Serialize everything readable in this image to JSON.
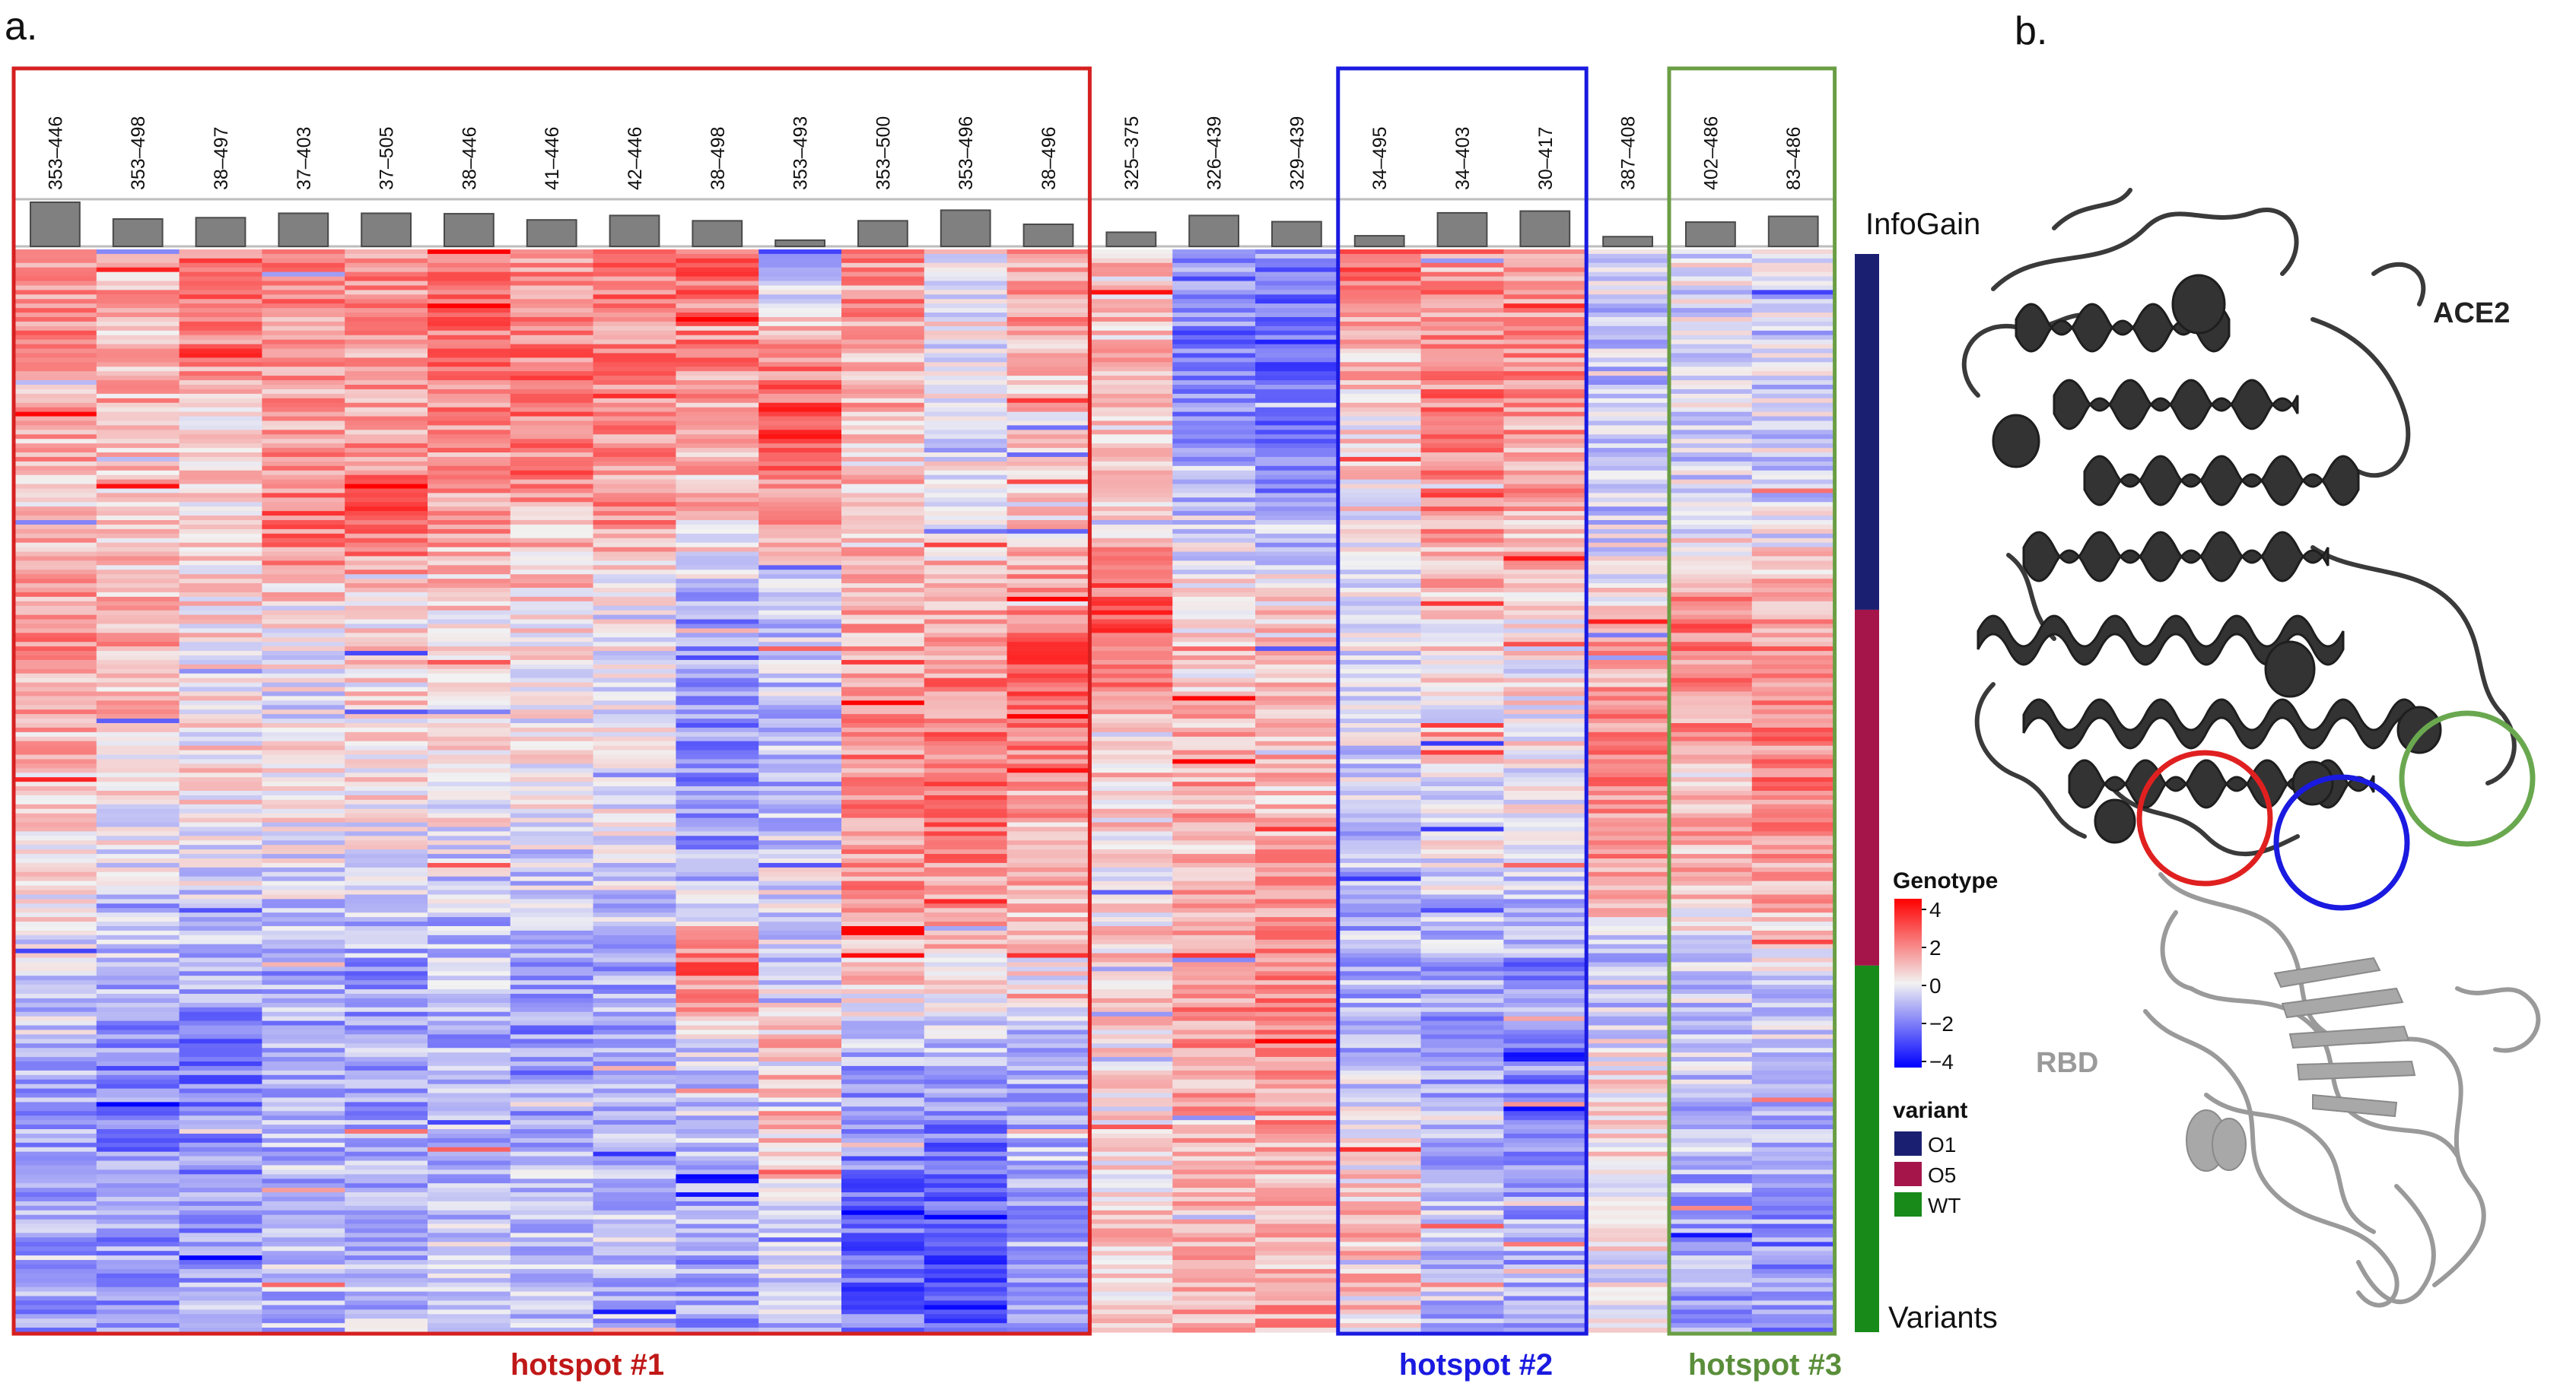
{
  "panels": {
    "a": "a.",
    "b": "b."
  },
  "chart_data": {
    "type": "heatmap",
    "title": "",
    "columns": [
      "353–446",
      "353–498",
      "38–497",
      "37–403",
      "37–505",
      "38–446",
      "41–446",
      "42–446",
      "38–498",
      "353–493",
      "353–500",
      "353–496",
      "38–496",
      "325–375",
      "326–439",
      "329–439",
      "34–495",
      "34–403",
      "30–417",
      "387–408",
      "402–486",
      "83–486"
    ],
    "infogain": {
      "label": "InfoGain",
      "values": [
        1.0,
        0.62,
        0.65,
        0.75,
        0.75,
        0.74,
        0.6,
        0.7,
        0.58,
        0.14,
        0.58,
        0.82,
        0.5,
        0.32,
        0.7,
        0.56,
        0.24,
        0.76,
        0.8,
        0.22,
        0.55,
        0.68
      ]
    },
    "color_scale": {
      "title": "Genotype",
      "min": -4,
      "max": 4,
      "ticks": [
        "4",
        "2",
        "0",
        "−2",
        "−4"
      ],
      "low": "#0000ff",
      "mid": "#f2f2f2",
      "high": "#ff0000"
    },
    "row_groups": {
      "label": "Variants",
      "legend_title": "variant",
      "groups": [
        {
          "name": "O1",
          "color": "#1b1f72",
          "fraction": 0.33
        },
        {
          "name": "O5",
          "color": "#a5154a",
          "fraction": 0.33
        },
        {
          "name": "WT",
          "color": "#178a1a",
          "fraction": 0.34
        }
      ]
    },
    "column_profiles": [
      [
        1.5,
        1.6,
        1.2,
        0.8,
        1.6,
        1.2,
        0.6,
        0.4,
        -0.5,
        -1.0,
        -1.3,
        -1.4,
        -1.3
      ],
      [
        1.2,
        1.0,
        1.0,
        0.4,
        1.2,
        1.0,
        0.3,
        -0.2,
        -0.8,
        -1.8,
        -1.7,
        -1.5,
        -1.4
      ],
      [
        2.2,
        1.8,
        0.6,
        0.2,
        0.4,
        0.2,
        0.4,
        -0.3,
        -1.2,
        -2.2,
        -1.6,
        -1.4,
        -1.3
      ],
      [
        2.0,
        1.6,
        1.4,
        2.2,
        0.2,
        -0.2,
        0.4,
        -0.4,
        -1.2,
        -1.2,
        -1.0,
        -0.8,
        -1.0
      ],
      [
        1.8,
        1.6,
        1.2,
        2.4,
        0.3,
        0.4,
        0.3,
        -0.4,
        -1.5,
        -1.2,
        -1.2,
        -1.0,
        -0.9
      ],
      [
        2.0,
        2.0,
        1.6,
        1.4,
        0.4,
        -0.2,
        0.3,
        -0.6,
        -1.0,
        -1.2,
        -0.8,
        -0.6,
        -1.3
      ],
      [
        1.6,
        2.0,
        2.0,
        1.2,
        0.2,
        0.0,
        0.0,
        -0.6,
        -1.4,
        -1.6,
        -1.0,
        -0.8,
        -1.0
      ],
      [
        2.0,
        1.8,
        1.4,
        1.6,
        -0.2,
        0.0,
        0.0,
        -0.4,
        -1.2,
        -1.4,
        -0.8,
        -0.8,
        -1.0
      ],
      [
        2.2,
        1.8,
        1.2,
        0.8,
        -1.4,
        -1.6,
        -1.6,
        -1.2,
        2.4,
        -0.8,
        -1.0,
        -1.2,
        -1.3
      ],
      [
        -2.0,
        1.2,
        3.0,
        1.2,
        -0.8,
        -0.8,
        -1.0,
        -0.2,
        -0.6,
        1.0,
        0.8,
        -0.4,
        -0.8
      ],
      [
        1.6,
        1.2,
        1.0,
        0.6,
        1.2,
        1.4,
        1.8,
        1.6,
        0.8,
        -1.2,
        -1.8,
        -2.4,
        -2.2
      ],
      [
        0.0,
        0.0,
        -0.2,
        0.2,
        1.4,
        1.8,
        2.2,
        1.6,
        0.6,
        -1.2,
        -2.2,
        -2.8,
        -2.8
      ],
      [
        1.4,
        1.2,
        0.6,
        0.4,
        2.2,
        2.4,
        1.6,
        1.2,
        0.2,
        -1.2,
        -1.0,
        -1.4,
        -1.6
      ],
      [
        0.6,
        0.8,
        0.6,
        0.6,
        2.8,
        1.6,
        0.6,
        0.2,
        0.8,
        0.2,
        0.4,
        0.6,
        0.8
      ],
      [
        -1.2,
        -2.0,
        -1.4,
        -0.6,
        0.4,
        1.0,
        1.2,
        1.0,
        1.6,
        1.4,
        1.0,
        1.0,
        1.2
      ],
      [
        -1.6,
        -2.4,
        -2.2,
        -1.2,
        0.4,
        1.0,
        1.0,
        1.2,
        2.0,
        1.6,
        1.2,
        1.0,
        1.4
      ],
      [
        2.8,
        1.2,
        0.4,
        0.2,
        0.0,
        -0.4,
        -0.6,
        -0.8,
        -1.2,
        -1.0,
        0.4,
        0.8,
        0.6
      ],
      [
        1.8,
        1.6,
        2.0,
        1.6,
        0.6,
        0.2,
        0.0,
        -0.4,
        -1.4,
        -1.4,
        -1.0,
        -0.6,
        -0.9
      ],
      [
        1.8,
        1.6,
        1.4,
        1.2,
        0.4,
        0.2,
        0.0,
        -0.6,
        -1.4,
        -1.8,
        -1.4,
        -1.2,
        -1.2
      ],
      [
        -0.4,
        -0.8,
        -0.8,
        -0.6,
        0.8,
        1.6,
        1.8,
        1.6,
        -1.2,
        0.2,
        0.6,
        0.0,
        -0.4
      ],
      [
        -0.2,
        -0.4,
        -0.6,
        -0.2,
        2.0,
        1.6,
        1.2,
        1.2,
        -0.6,
        -0.8,
        -1.0,
        -1.2,
        -1.3
      ],
      [
        -0.4,
        -0.6,
        -0.4,
        -0.4,
        1.6,
        1.8,
        1.8,
        1.4,
        -0.4,
        -0.6,
        -1.0,
        -1.4,
        -1.5
      ]
    ]
  },
  "hotspots": [
    {
      "label": "hotspot  #1",
      "color": "#d62020"
    },
    {
      "label": "hotspot  #2",
      "color": "#1a1ae0"
    },
    {
      "label": "hotspot  #3",
      "color": "#6a9e44"
    }
  ],
  "structure": {
    "ace2_label": "ACE2",
    "rbd_label": "RBD"
  }
}
